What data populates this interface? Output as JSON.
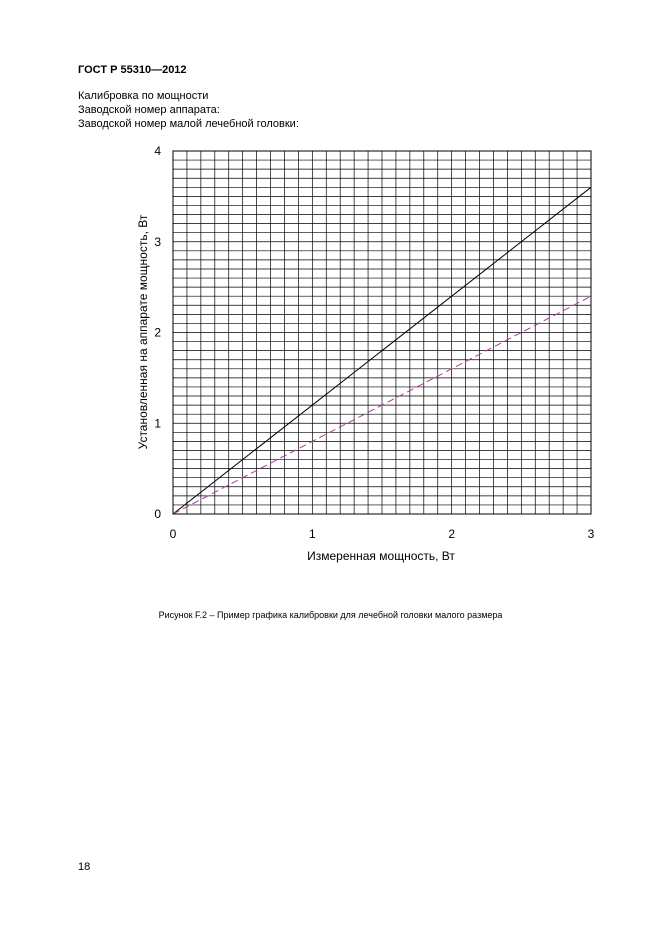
{
  "page": {
    "standard": "ГОСТ Р 55310—2012",
    "header_lines": [
      "Калибровка по мощности",
      "Заводской номер аппарата:",
      "Заводской номер малой лечебной головки:"
    ],
    "caption": "Рисунок F.2 – Пример графика калибровки для лечебной головки малого размера",
    "page_number": "18"
  },
  "chart_data": {
    "type": "line",
    "xlabel": "Измеренная мощность, Вт",
    "ylabel": "Установленная на аппарате мощность, Вт",
    "xlim": [
      0,
      3
    ],
    "ylim": [
      0,
      4
    ],
    "xticks": [
      0,
      1,
      2,
      3
    ],
    "yticks": [
      0,
      1,
      2,
      3,
      4
    ],
    "grid": true,
    "series": [
      {
        "color": "#000000",
        "dash": "solid",
        "points": [
          [
            0,
            0
          ],
          [
            3,
            3.6
          ]
        ]
      },
      {
        "color": "#b03a9a",
        "dash": "dashed",
        "points": [
          [
            0,
            0
          ],
          [
            3,
            2.4
          ]
        ]
      }
    ]
  }
}
